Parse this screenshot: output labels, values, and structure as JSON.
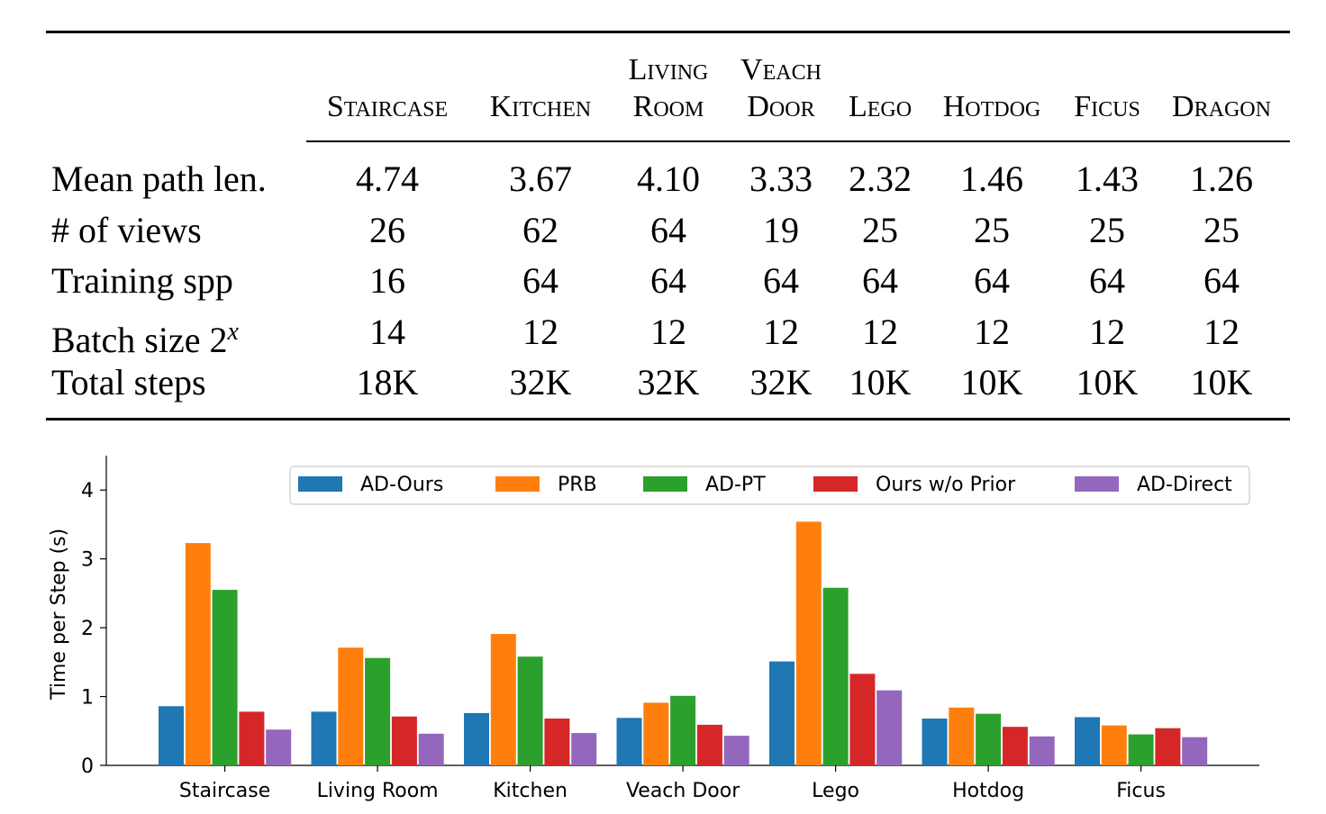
{
  "table": {
    "columns": [
      {
        "line1": "",
        "line2": "Staircase"
      },
      {
        "line1": "",
        "line2": "Kitchen"
      },
      {
        "line1": "Living",
        "line2": "Room"
      },
      {
        "line1": "Veach",
        "line2": "Door"
      },
      {
        "line1": "",
        "line2": "Lego"
      },
      {
        "line1": "",
        "line2": "Hotdog"
      },
      {
        "line1": "",
        "line2": "Ficus"
      },
      {
        "line1": "",
        "line2": "Dragon"
      }
    ],
    "rows": [
      {
        "label": "Mean path len.",
        "label_sup": "",
        "values": [
          "4.74",
          "3.67",
          "4.10",
          "3.33",
          "2.32",
          "1.46",
          "1.43",
          "1.26"
        ]
      },
      {
        "label": "# of views",
        "label_sup": "",
        "values": [
          "26",
          "62",
          "64",
          "19",
          "25",
          "25",
          "25",
          "25"
        ]
      },
      {
        "label": "Training spp",
        "label_sup": "",
        "values": [
          "16",
          "64",
          "64",
          "64",
          "64",
          "64",
          "64",
          "64"
        ]
      },
      {
        "label": "Batch size 2",
        "label_sup": "x",
        "values": [
          "14",
          "12",
          "12",
          "12",
          "12",
          "12",
          "12",
          "12"
        ]
      },
      {
        "label": "Total steps",
        "label_sup": "",
        "values": [
          "18K",
          "32K",
          "32K",
          "32K",
          "10K",
          "10K",
          "10K",
          "10K"
        ]
      }
    ]
  },
  "chart_data": {
    "type": "bar",
    "title": "",
    "xlabel": "",
    "ylabel": "Time per Step (s)",
    "ylim": [
      0,
      4.5
    ],
    "yticks": [
      "0",
      "1",
      "2",
      "3",
      "4"
    ],
    "grid": false,
    "legend_placement": "top-right",
    "categories": [
      "Staircase",
      "Living Room",
      "Kitchen",
      "Veach Door",
      "Lego",
      "Hotdog",
      "Ficus"
    ],
    "series": [
      {
        "name": "AD-Ours",
        "color": "#1f77b4",
        "values": [
          0.86,
          0.78,
          0.76,
          0.69,
          1.51,
          0.68,
          0.7
        ]
      },
      {
        "name": "PRB",
        "color": "#ff7f0e",
        "values": [
          3.23,
          1.71,
          1.91,
          0.91,
          3.54,
          0.84,
          0.58
        ]
      },
      {
        "name": "AD-PT",
        "color": "#2ca02c",
        "values": [
          2.55,
          1.56,
          1.58,
          1.01,
          2.58,
          0.75,
          0.45
        ]
      },
      {
        "name": "Ours w/o Prior",
        "color": "#d62728",
        "values": [
          0.78,
          0.71,
          0.68,
          0.59,
          1.33,
          0.56,
          0.54
        ]
      },
      {
        "name": "AD-Direct",
        "color": "#9467bd",
        "values": [
          0.52,
          0.46,
          0.47,
          0.43,
          1.09,
          0.42,
          0.41
        ]
      }
    ]
  }
}
